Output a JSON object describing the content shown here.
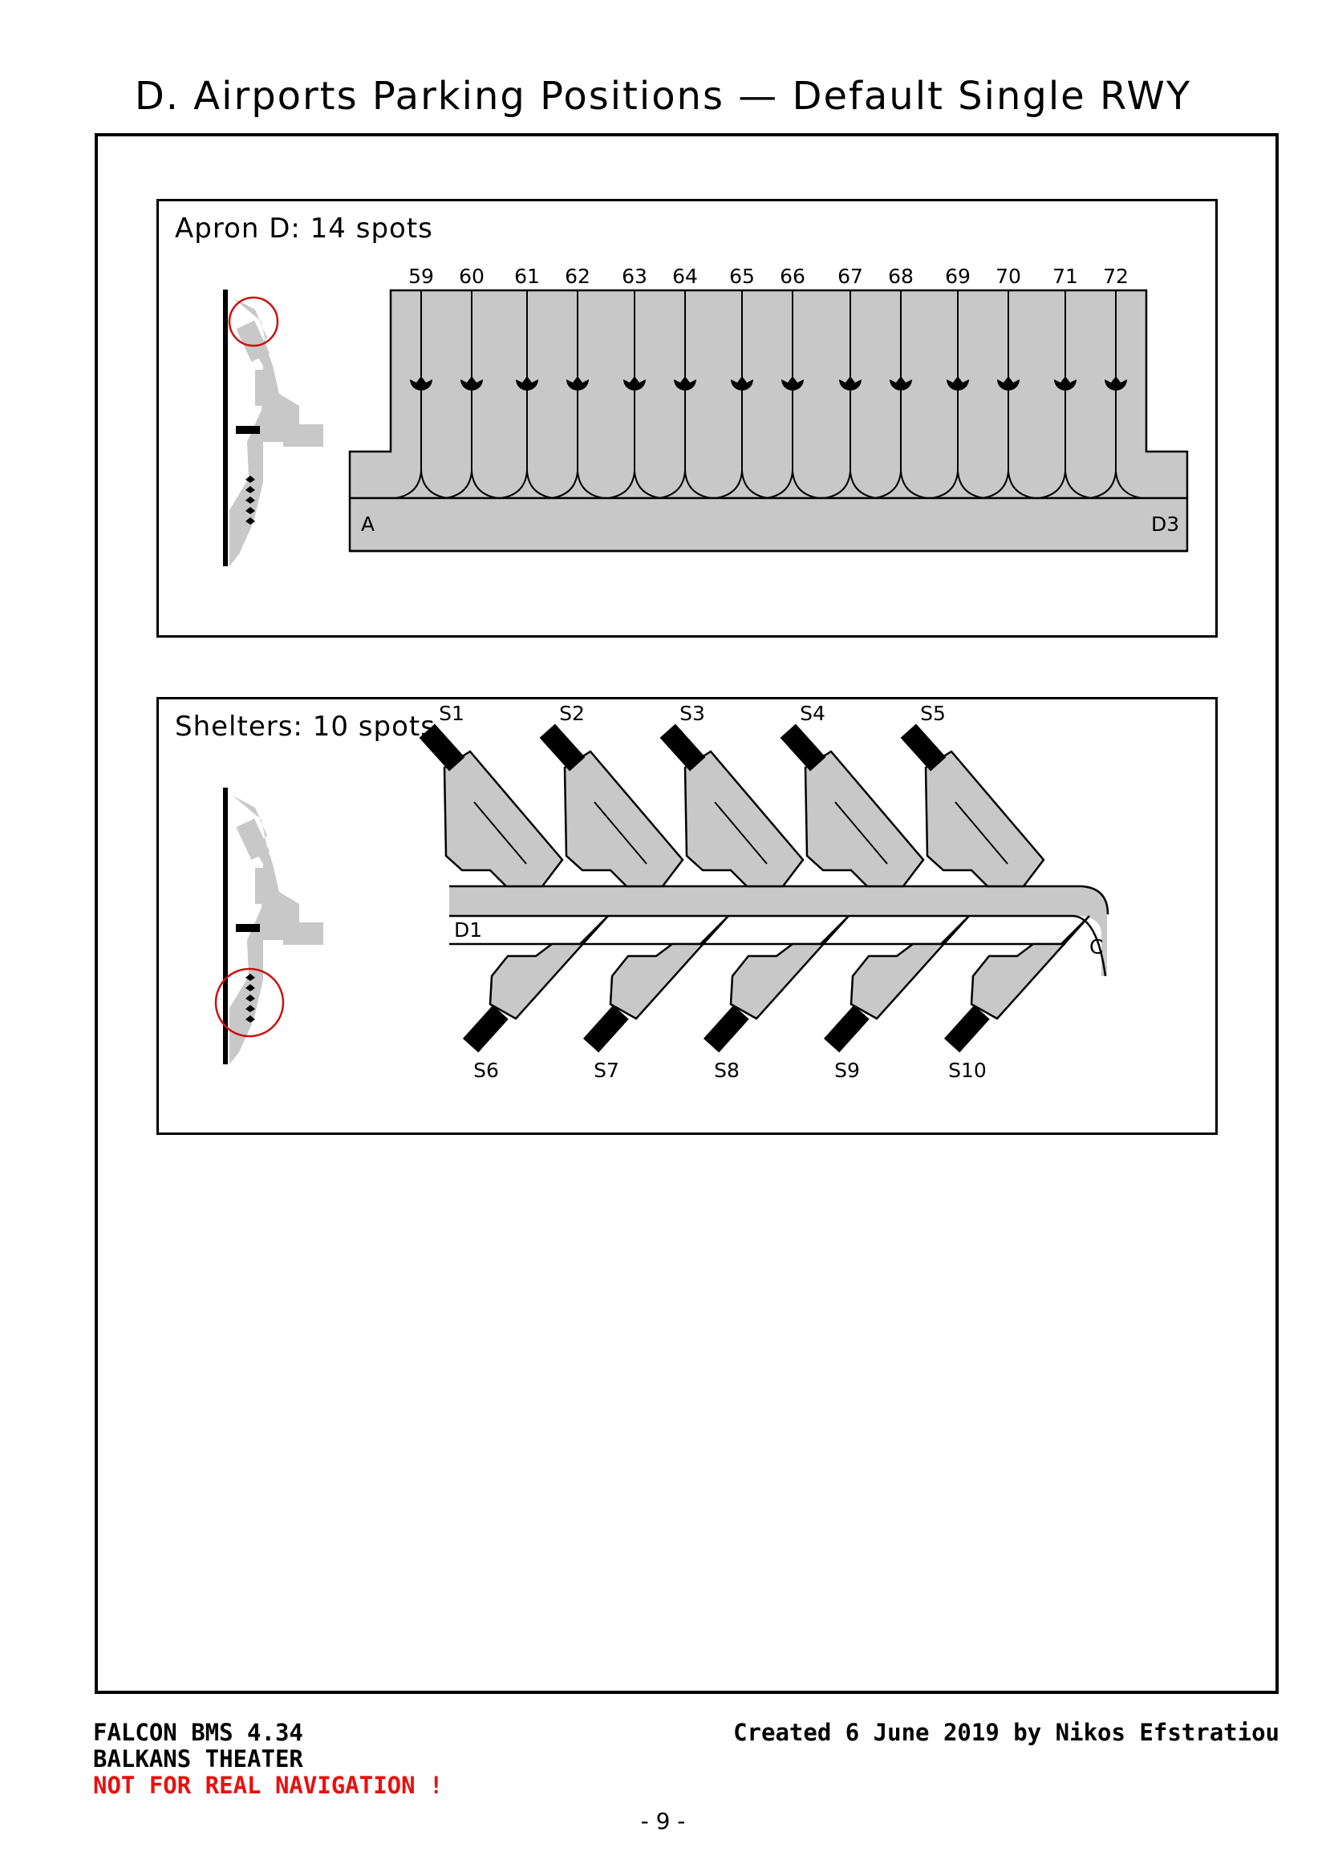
{
  "page": {
    "title": "D. Airports Parking Positions — Default Single RWY",
    "page_number": "- 9 -"
  },
  "footer": {
    "line1": "FALCON BMS 4.34",
    "line2": "BALKANS THEATER",
    "warning": "NOT FOR REAL NAVIGATION !",
    "credit": "Created 6 June 2019 by Nikos Efstratiou"
  },
  "apron": {
    "title": "Apron D: 14 spots",
    "spots": [
      "59",
      "60",
      "61",
      "62",
      "63",
      "64",
      "65",
      "66",
      "67",
      "68",
      "69",
      "70",
      "71",
      "72"
    ],
    "taxiway_left": "A",
    "taxiway_right": "D3"
  },
  "shelters": {
    "title": "Shelters: 10 spots",
    "top_row": [
      "S1",
      "S2",
      "S3",
      "S4",
      "S5"
    ],
    "bottom_row": [
      "S6",
      "S7",
      "S8",
      "S9",
      "S10"
    ],
    "taxiway_left": "D1",
    "taxiway_right": "C"
  },
  "colors": {
    "apron_fill": "#c8c8c8",
    "locator_fill": "#c8c8c8",
    "highlight_circle": "#cc1111",
    "warning_text": "#e8100e"
  }
}
